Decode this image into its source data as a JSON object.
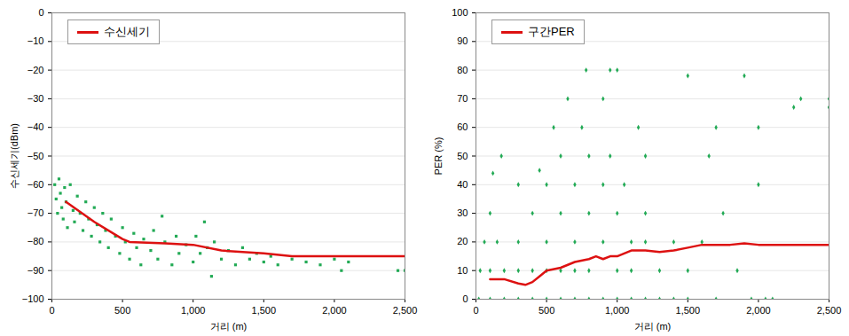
{
  "chart_data": [
    {
      "type": "scatter",
      "x_label": "거리 (m)",
      "y_label": "수신세기(dBm)",
      "xlim": [
        0,
        2500
      ],
      "xticks": [
        0,
        500,
        1000,
        1500,
        2000,
        2500
      ],
      "ylim": [
        -100,
        0
      ],
      "yticks": [
        -100,
        -90,
        -80,
        -70,
        -60,
        -50,
        -40,
        -30,
        -20,
        -10,
        0
      ],
      "grid": true,
      "legend": "top-left",
      "series": [
        {
          "color": "#22aa55",
          "type": "scatter",
          "marker": "square",
          "x": [
            20,
            30,
            40,
            50,
            60,
            70,
            80,
            90,
            100,
            110,
            130,
            150,
            160,
            180,
            200,
            220,
            240,
            260,
            280,
            300,
            320,
            340,
            360,
            380,
            400,
            420,
            450,
            480,
            500,
            520,
            550,
            580,
            600,
            630,
            650,
            700,
            720,
            750,
            780,
            800,
            850,
            880,
            900,
            950,
            1000,
            1020,
            1050,
            1080,
            1100,
            1130,
            1150,
            1200,
            1250,
            1300,
            1350,
            1400,
            1450,
            1500,
            1550,
            1600,
            1700,
            1800,
            1900,
            2000,
            2050,
            2100,
            2450,
            2500
          ],
          "values": [
            -60,
            -65,
            -70,
            -58,
            -63,
            -68,
            -72,
            -61,
            -66,
            -75,
            -60,
            -69,
            -73,
            -64,
            -70,
            -76,
            -66,
            -72,
            -78,
            -68,
            -74,
            -80,
            -70,
            -76,
            -82,
            -72,
            -78,
            -84,
            -75,
            -80,
            -86,
            -77,
            -82,
            -88,
            -79,
            -83,
            -76,
            -86,
            -71,
            -80,
            -88,
            -78,
            -84,
            -81,
            -87,
            -78,
            -84,
            -73,
            -82,
            -92,
            -80,
            -86,
            -83,
            -88,
            -82,
            -86,
            -84,
            -87,
            -85,
            -88,
            -86,
            -87,
            -88,
            -86,
            -90,
            -87,
            -90,
            -90
          ]
        },
        {
          "name": "수신세기",
          "color": "#dd1111",
          "type": "line",
          "line_style": "solid",
          "x": [
            100,
            300,
            500,
            550,
            800,
            1000,
            1200,
            1500,
            1700,
            2000,
            2500
          ],
          "values": [
            -66,
            -73,
            -79,
            -80,
            -80.5,
            -81,
            -83,
            -84,
            -85,
            -85,
            -85
          ]
        }
      ]
    },
    {
      "type": "scatter",
      "x_label": "거리 (m)",
      "y_label": "PER (%)",
      "xlim": [
        0,
        2500
      ],
      "xticks": [
        0,
        500,
        1000,
        1500,
        2000,
        2500
      ],
      "ylim": [
        0,
        100
      ],
      "yticks": [
        0,
        10,
        20,
        30,
        40,
        50,
        60,
        70,
        80,
        90,
        100
      ],
      "grid": true,
      "legend": "top-left",
      "series": [
        {
          "color": "#22aa55",
          "type": "scatter",
          "marker": "diamond",
          "x": [
            20,
            100,
            200,
            300,
            400,
            500,
            600,
            700,
            800,
            900,
            1000,
            1100,
            1200,
            1300,
            1400,
            1500,
            1700,
            1950,
            2050,
            2100,
            30,
            100,
            200,
            300,
            400,
            500,
            600,
            700,
            800,
            1000,
            1100,
            1300,
            1500,
            1850,
            60,
            150,
            300,
            500,
            700,
            900,
            1100,
            1200,
            1400,
            1600,
            100,
            400,
            600,
            800,
            1000,
            1200,
            1750,
            120,
            300,
            500,
            700,
            900,
            1050,
            2000,
            180,
            450,
            600,
            800,
            950,
            1200,
            1650,
            550,
            750,
            900,
            1150,
            1700,
            2000,
            650,
            780,
            950,
            1000,
            1500,
            1900,
            2250,
            2300,
            2500,
            2500
          ],
          "values": [
            0,
            0,
            0,
            0,
            0,
            0,
            0,
            0,
            0,
            0,
            0,
            0,
            0,
            0,
            0,
            0,
            0,
            0,
            0,
            0,
            10,
            10,
            10,
            10,
            10,
            10,
            10,
            10,
            10,
            10,
            10,
            10,
            10,
            10,
            20,
            20,
            20,
            20,
            20,
            20,
            20,
            20,
            20,
            20,
            30,
            30,
            30,
            30,
            30,
            30,
            30,
            44,
            40,
            40,
            40,
            40,
            40,
            40,
            50,
            45,
            50,
            50,
            50,
            50,
            50,
            60,
            60,
            70,
            60,
            60,
            60,
            70,
            80,
            80,
            80,
            78,
            78,
            67,
            70,
            70,
            67
          ]
        },
        {
          "name": "구간PER",
          "color": "#dd1111",
          "type": "line",
          "line_style": "solid",
          "x": [
            100,
            200,
            300,
            350,
            400,
            450,
            500,
            600,
            700,
            800,
            850,
            900,
            950,
            1000,
            1100,
            1200,
            1300,
            1400,
            1500,
            1600,
            1800,
            1900,
            2000,
            2100,
            2500
          ],
          "values": [
            7,
            7,
            5.5,
            5,
            6,
            8,
            10,
            11,
            13,
            14,
            15,
            14,
            15,
            15,
            17,
            17,
            16.5,
            17,
            18,
            19,
            19,
            19.5,
            19,
            19,
            19
          ]
        }
      ]
    }
  ]
}
